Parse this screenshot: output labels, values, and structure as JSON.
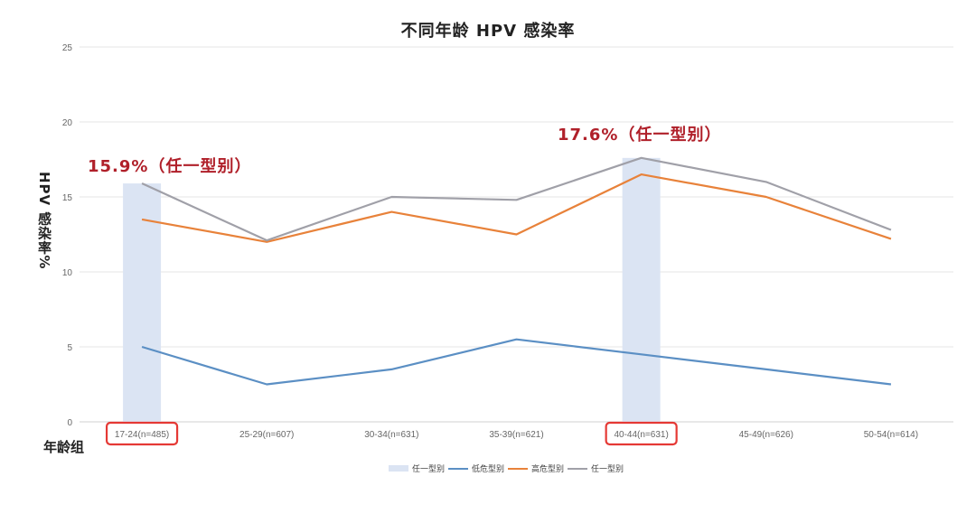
{
  "header": {
    "title": "不同年龄 HPV 感染率"
  },
  "axes": {
    "ylabel": "HPV 感染率%",
    "xlabel": "年龄组",
    "yticks": [
      "0",
      "5",
      "10",
      "15",
      "20",
      "25"
    ]
  },
  "annotations": [
    {
      "text": "15.9%（任一型别）",
      "target": "17-24(n=485)"
    },
    {
      "text": "17.6%（任一型别）",
      "target": "40-44(n=631)"
    }
  ],
  "legend": {
    "items": [
      {
        "label": "任一型别",
        "kind": "bar",
        "color": "#dbe4f3"
      },
      {
        "label": "低危型别",
        "kind": "line",
        "color": "#5b8fc4"
      },
      {
        "label": "高危型别",
        "kind": "line",
        "color": "#e8823a"
      },
      {
        "label": "任一型别",
        "kind": "line",
        "color": "#a0a0a8"
      }
    ]
  },
  "highlight_color": "#e53935",
  "chart_data": {
    "type": "line",
    "title": "不同年龄 HPV 感染率",
    "xlabel": "年龄组",
    "ylabel": "HPV 感染率%",
    "ylim": [
      0,
      25
    ],
    "yticks": [
      0,
      5,
      10,
      15,
      20,
      25
    ],
    "grid": true,
    "legend_position": "bottom",
    "categories": [
      "17-24(n=485)",
      "25-29(n=607)",
      "30-34(n=631)",
      "35-39(n=621)",
      "40-44(n=631)",
      "45-49(n=626)",
      "50-54(n=614)"
    ],
    "series": [
      {
        "name": "任一型别",
        "type": "bar",
        "color": "#dbe4f3",
        "values": [
          15.9,
          null,
          null,
          null,
          17.6,
          null,
          null
        ]
      },
      {
        "name": "低危型别",
        "type": "line",
        "color": "#5b8fc4",
        "values": [
          5.0,
          2.5,
          3.5,
          5.5,
          4.5,
          3.5,
          2.5
        ]
      },
      {
        "name": "高危型别",
        "type": "line",
        "color": "#e8823a",
        "values": [
          13.5,
          12.0,
          14.0,
          12.5,
          16.5,
          15.0,
          12.2
        ]
      },
      {
        "name": "任一型别",
        "type": "line",
        "color": "#a0a0a8",
        "values": [
          15.9,
          12.1,
          15.0,
          14.8,
          17.6,
          16.0,
          12.8
        ]
      }
    ],
    "annotations": [
      "15.9%（任一型别）",
      "17.6%（任一型别）"
    ],
    "highlighted_categories": [
      "17-24(n=485)",
      "40-44(n=631)"
    ]
  }
}
